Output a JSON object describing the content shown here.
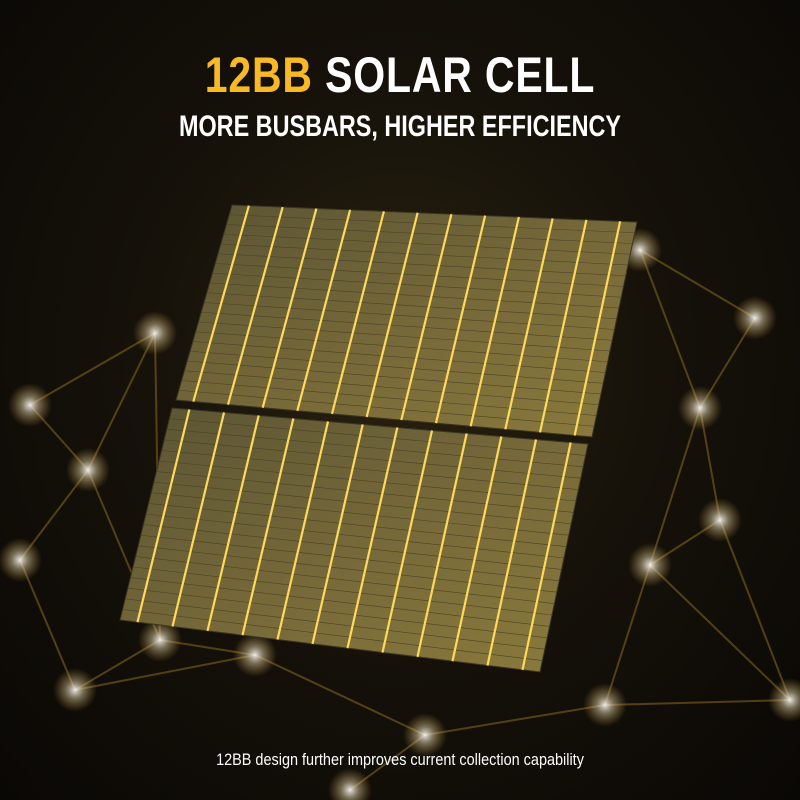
{
  "headline": {
    "accent": "12BB",
    "main": "SOLAR CELL"
  },
  "subtitle": "MORE BUSBARS, HIGHER EFFICIENCY",
  "caption": "12BB design further improves current collection capability",
  "busbar_count": 12,
  "colors": {
    "accent": "#f7b924",
    "cell": "#6b6236",
    "busbar": "#ffd95a",
    "background": "#0b0905"
  },
  "icons": []
}
